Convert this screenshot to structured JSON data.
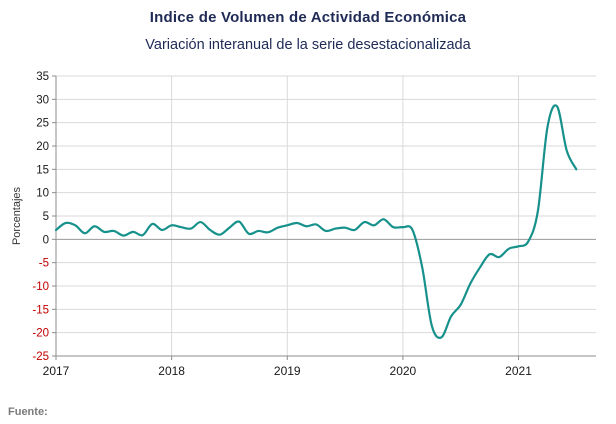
{
  "chart_data": {
    "type": "line",
    "title": "Indice de Volumen de  Actividad Económica",
    "subtitle": "Variación interanual de la serie desestacionalizada",
    "xlabel": "",
    "ylabel": "Porcentajes",
    "source": "Fuente:",
    "xlim": [
      2017.0,
      2021.67
    ],
    "ylim": [
      -25,
      35
    ],
    "y_ticks": [
      -25,
      -20,
      -15,
      -10,
      -5,
      0,
      5,
      10,
      15,
      20,
      25,
      30,
      35
    ],
    "x_tick_labels": [
      "2017",
      "2018",
      "2019",
      "2020",
      "2021"
    ],
    "x_tick_values": [
      2017,
      2018,
      2019,
      2020,
      2021
    ],
    "grid": true,
    "legend": "none",
    "colors": {
      "line": "#17918b",
      "grid": "#d9d9d9",
      "axis": "#8c8c8c",
      "positive_tick": "#1a1a1a",
      "negative_tick": "#c00000",
      "title": "#1f2a55"
    },
    "series": [
      {
        "x": [
          2017.0,
          2017.083,
          2017.167,
          2017.25,
          2017.333,
          2017.417,
          2017.5,
          2017.583,
          2017.667,
          2017.75,
          2017.833,
          2017.917,
          2018.0,
          2018.083,
          2018.167,
          2018.25,
          2018.333,
          2018.417,
          2018.5,
          2018.583,
          2018.667,
          2018.75,
          2018.833,
          2018.917,
          2019.0,
          2019.083,
          2019.167,
          2019.25,
          2019.333,
          2019.417,
          2019.5,
          2019.583,
          2019.667,
          2019.75,
          2019.833,
          2019.917,
          2020.0,
          2020.083,
          2020.167,
          2020.25,
          2020.333,
          2020.417,
          2020.5,
          2020.583,
          2020.667,
          2020.75,
          2020.833,
          2020.917,
          2021.0,
          2021.083,
          2021.167,
          2021.25,
          2021.333,
          2021.417,
          2021.5
        ],
        "values": [
          2.0,
          3.5,
          3.0,
          1.3,
          2.8,
          1.6,
          1.8,
          0.8,
          1.6,
          0.9,
          3.3,
          2.0,
          3.0,
          2.6,
          2.3,
          3.7,
          2.0,
          1.0,
          2.5,
          3.8,
          1.2,
          1.8,
          1.5,
          2.5,
          3.0,
          3.5,
          2.8,
          3.2,
          1.8,
          2.3,
          2.5,
          2.0,
          3.7,
          3.0,
          4.3,
          2.6,
          2.6,
          2.0,
          -6.0,
          -18.5,
          -21.0,
          -16.5,
          -14.0,
          -9.5,
          -6.0,
          -3.2,
          -3.8,
          -2.0,
          -1.5,
          -0.5,
          6.0,
          24.0,
          28.5,
          19.0,
          15.0
        ]
      }
    ]
  }
}
